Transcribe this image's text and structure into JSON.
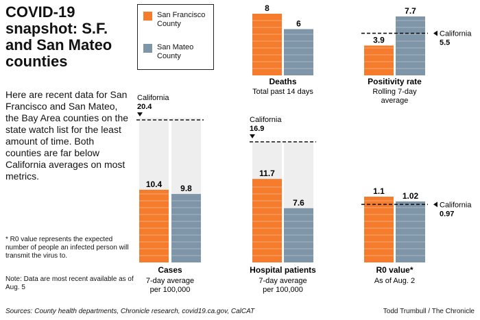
{
  "title": "COVID-19 snapshot: S.F. and San Mateo counties",
  "intro": "Here are recent data for San Francisco and San Mateo, the Bay Area counties on the state watch list for the least amount of time. Both counties are far below California averages on most metrics.",
  "footnote": "* R0 value represents the expected number of people an infected person will transmit the virus to.",
  "note": "Note: Data are most recent available as of Aug. 5",
  "sources": "Sources: County health departments, Chronicle research, covid19.ca.gov, CalCAT",
  "credit": "Todd Trumbull / The Chronicle",
  "colors": {
    "sf": "#f57c2c",
    "sm": "#7f95a8",
    "track": "#eeeeee"
  },
  "legend": [
    {
      "name": "San Francisco County",
      "color": "#f57c2c"
    },
    {
      "name": "San Mateo County",
      "color": "#7f95a8"
    }
  ],
  "chart_data": [
    {
      "type": "bar",
      "title": "Cases",
      "subtitle": "7-day average per 100,000",
      "categories": [
        "San Francisco County",
        "San Mateo County"
      ],
      "values": [
        10.4,
        9.8
      ],
      "value_labels": [
        "10.4",
        "9.8"
      ],
      "reference": {
        "label": "California",
        "value": 20.4,
        "value_label": "20.4"
      }
    },
    {
      "type": "bar",
      "title": "Deaths",
      "subtitle": "Total past 14 days",
      "categories": [
        "San Francisco County",
        "San Mateo County"
      ],
      "values": [
        8,
        6
      ],
      "value_labels": [
        "8",
        "6"
      ]
    },
    {
      "type": "bar",
      "title": "Hospital patients",
      "subtitle": "7-day average per 100,000",
      "categories": [
        "San Francisco County",
        "San Mateo County"
      ],
      "values": [
        11.7,
        7.6
      ],
      "value_labels": [
        "11.7",
        "7.6"
      ],
      "reference": {
        "label": "California",
        "value": 16.9,
        "value_label": "16.9"
      }
    },
    {
      "type": "bar",
      "title": "Positivity rate",
      "subtitle": "Rolling 7-day average",
      "categories": [
        "San Francisco County",
        "San Mateo County"
      ],
      "values": [
        3.9,
        7.7
      ],
      "value_labels": [
        "3.9",
        "7.7"
      ],
      "reference": {
        "label": "California",
        "value": 5.5,
        "value_label": "5.5"
      }
    },
    {
      "type": "bar",
      "title": "R0 value*",
      "subtitle": "As of Aug. 2",
      "categories": [
        "San Francisco County",
        "San Mateo County"
      ],
      "values": [
        1.1,
        1.02
      ],
      "value_labels": [
        "1.1",
        "1.02"
      ],
      "reference": {
        "label": "California",
        "value": 0.97,
        "value_label": "0.97"
      }
    }
  ]
}
